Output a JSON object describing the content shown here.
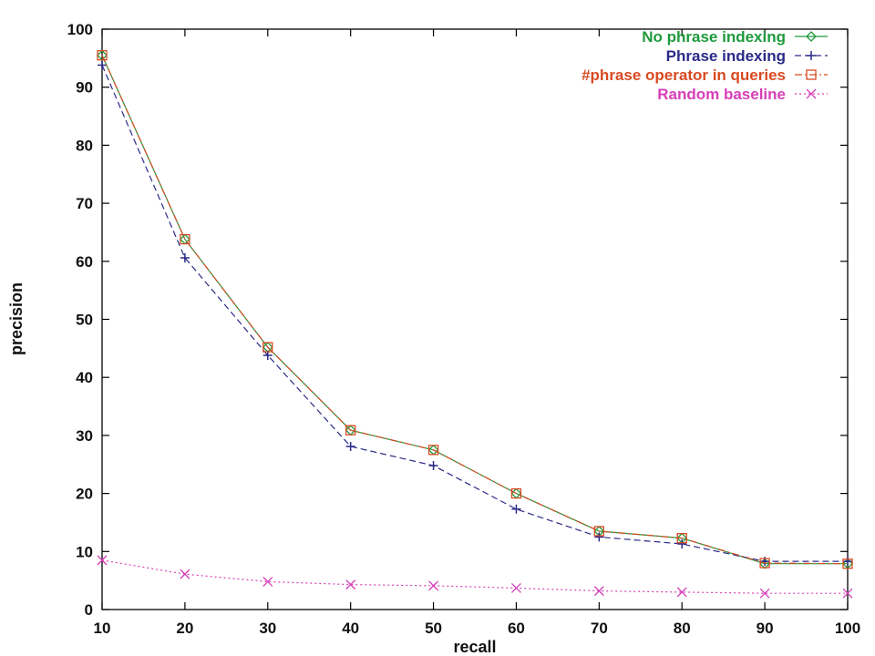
{
  "chart_data": {
    "type": "line",
    "xlabel": "recall",
    "ylabel": "precision",
    "xlim": [
      10,
      100
    ],
    "ylim": [
      0,
      100
    ],
    "x_ticks": [
      "10",
      "20",
      "30",
      "40",
      "50",
      "60",
      "70",
      "80",
      "90",
      "100"
    ],
    "y_ticks": [
      "0",
      "10",
      "20",
      "30",
      "40",
      "50",
      "60",
      "70",
      "80",
      "90",
      "100"
    ],
    "grid": false,
    "legend_position": "top-right",
    "x": [
      10,
      20,
      30,
      40,
      50,
      60,
      70,
      80,
      90,
      100
    ],
    "series": [
      {
        "name": "No phrase indexing",
        "color": "#1e9a3c",
        "marker": "diamond",
        "dash": "solid",
        "values": [
          95.5,
          63.8,
          45.2,
          30.9,
          27.5,
          20.0,
          13.5,
          12.3,
          7.9,
          7.9
        ]
      },
      {
        "name": "Phrase indexing",
        "color": "#2a2a8a",
        "marker": "plus",
        "dash": "dashed",
        "values": [
          93.8,
          60.6,
          43.8,
          28.1,
          24.8,
          17.3,
          12.5,
          11.3,
          8.3,
          8.3
        ]
      },
      {
        "name": "#phrase operator in queries",
        "color": "#d84a22",
        "marker": "square",
        "dash": "dashdot",
        "values": [
          95.5,
          63.8,
          45.2,
          30.9,
          27.5,
          20.0,
          13.5,
          12.3,
          8.0,
          7.9
        ]
      },
      {
        "name": "Random baseline",
        "color": "#d63fb8",
        "marker": "x",
        "dash": "dotted",
        "values": [
          8.5,
          6.1,
          4.8,
          4.3,
          4.1,
          3.7,
          3.2,
          3.0,
          2.8,
          2.8
        ]
      }
    ]
  }
}
